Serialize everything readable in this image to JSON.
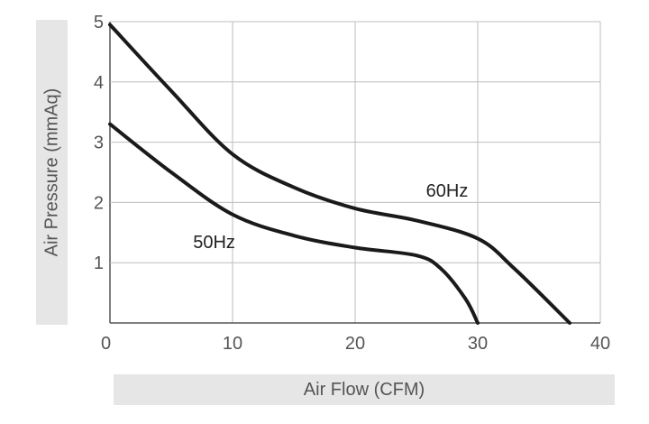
{
  "chart_data": {
    "type": "line",
    "xlabel": "Air Flow (CFM)",
    "ylabel": "Air Pressure (mmAq)",
    "xlim": [
      0,
      40
    ],
    "ylim": [
      0,
      5
    ],
    "xticks": [
      "0",
      "10",
      "20",
      "30",
      "40"
    ],
    "yticks": [
      "1",
      "2",
      "3",
      "4",
      "5"
    ],
    "grid": true,
    "series": [
      {
        "name": "60Hz",
        "x": [
          0,
          5,
          10,
          15,
          20,
          25,
          30,
          33,
          37.5
        ],
        "y": [
          4.95,
          3.85,
          2.8,
          2.25,
          1.9,
          1.7,
          1.4,
          0.9,
          0
        ]
      },
      {
        "name": "50Hz",
        "x": [
          0,
          5,
          10,
          15,
          20,
          25,
          27,
          29,
          30
        ],
        "y": [
          3.3,
          2.5,
          1.8,
          1.45,
          1.25,
          1.12,
          0.9,
          0.4,
          0
        ]
      }
    ],
    "series_labels": [
      "60Hz",
      "50Hz"
    ]
  }
}
